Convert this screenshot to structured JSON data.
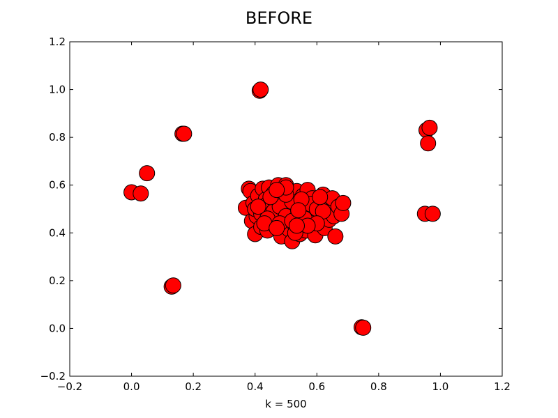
{
  "chart_data": {
    "type": "scatter",
    "title": "BEFORE",
    "xlabel": "k = 500",
    "ylabel": "",
    "xlim": [
      -0.2,
      1.2
    ],
    "ylim": [
      -0.2,
      1.2
    ],
    "xticks": [
      "−0.2",
      "0.0",
      "0.2",
      "0.4",
      "0.6",
      "0.8",
      "1.0",
      "1.2"
    ],
    "yticks": [
      "−0.2",
      "0.0",
      "0.2",
      "0.4",
      "0.6",
      "0.8",
      "1.0",
      "1.2"
    ],
    "grid": false,
    "marker_color": "#ff0000",
    "marker_edge_color": "#000000",
    "series": [
      {
        "points": [
          [
            0.0,
            0.57
          ],
          [
            0.03,
            0.565
          ],
          [
            0.05,
            0.65
          ],
          [
            0.13,
            0.175
          ],
          [
            0.135,
            0.18
          ],
          [
            0.165,
            0.815
          ],
          [
            0.17,
            0.815
          ],
          [
            0.415,
            0.995
          ],
          [
            0.418,
            1.0
          ],
          [
            0.745,
            0.005
          ],
          [
            0.75,
            0.003
          ],
          [
            0.955,
            0.83
          ],
          [
            0.965,
            0.84
          ],
          [
            0.96,
            0.775
          ],
          [
            0.95,
            0.48
          ],
          [
            0.975,
            0.48
          ],
          [
            0.37,
            0.505
          ],
          [
            0.38,
            0.585
          ],
          [
            0.385,
            0.575
          ],
          [
            0.39,
            0.45
          ],
          [
            0.395,
            0.525
          ],
          [
            0.4,
            0.395
          ],
          [
            0.405,
            0.47
          ],
          [
            0.41,
            0.555
          ],
          [
            0.415,
            0.51
          ],
          [
            0.42,
            0.425
          ],
          [
            0.425,
            0.585
          ],
          [
            0.43,
            0.48
          ],
          [
            0.435,
            0.54
          ],
          [
            0.44,
            0.41
          ],
          [
            0.445,
            0.59
          ],
          [
            0.45,
            0.5
          ],
          [
            0.455,
            0.455
          ],
          [
            0.46,
            0.565
          ],
          [
            0.465,
            0.43
          ],
          [
            0.47,
            0.52
          ],
          [
            0.475,
            0.6
          ],
          [
            0.48,
            0.47
          ],
          [
            0.485,
            0.385
          ],
          [
            0.49,
            0.545
          ],
          [
            0.495,
            0.44
          ],
          [
            0.5,
            0.6
          ],
          [
            0.505,
            0.5
          ],
          [
            0.51,
            0.415
          ],
          [
            0.515,
            0.57
          ],
          [
            0.52,
            0.365
          ],
          [
            0.525,
            0.485
          ],
          [
            0.53,
            0.43
          ],
          [
            0.535,
            0.575
          ],
          [
            0.54,
            0.52
          ],
          [
            0.545,
            0.395
          ],
          [
            0.55,
            0.455
          ],
          [
            0.555,
            0.555
          ],
          [
            0.56,
            0.5
          ],
          [
            0.565,
            0.41
          ],
          [
            0.57,
            0.58
          ],
          [
            0.575,
            0.475
          ],
          [
            0.58,
            0.43
          ],
          [
            0.585,
            0.545
          ],
          [
            0.59,
            0.5
          ],
          [
            0.595,
            0.39
          ],
          [
            0.6,
            0.465
          ],
          [
            0.605,
            0.535
          ],
          [
            0.61,
            0.445
          ],
          [
            0.615,
            0.505
          ],
          [
            0.62,
            0.56
          ],
          [
            0.625,
            0.42
          ],
          [
            0.63,
            0.48
          ],
          [
            0.635,
            0.525
          ],
          [
            0.64,
            0.455
          ],
          [
            0.645,
            0.495
          ],
          [
            0.65,
            0.545
          ],
          [
            0.655,
            0.47
          ],
          [
            0.66,
            0.385
          ],
          [
            0.67,
            0.51
          ],
          [
            0.68,
            0.48
          ],
          [
            0.685,
            0.525
          ],
          [
            0.4,
            0.5
          ],
          [
            0.42,
            0.48
          ],
          [
            0.44,
            0.52
          ],
          [
            0.46,
            0.49
          ],
          [
            0.48,
            0.51
          ],
          [
            0.5,
            0.47
          ],
          [
            0.52,
            0.53
          ],
          [
            0.54,
            0.49
          ],
          [
            0.56,
            0.48
          ],
          [
            0.58,
            0.52
          ],
          [
            0.6,
            0.5
          ],
          [
            0.62,
            0.49
          ],
          [
            0.44,
            0.46
          ],
          [
            0.48,
            0.44
          ],
          [
            0.52,
            0.45
          ],
          [
            0.56,
            0.46
          ],
          [
            0.6,
            0.44
          ],
          [
            0.45,
            0.55
          ],
          [
            0.5,
            0.56
          ],
          [
            0.55,
            0.54
          ],
          [
            0.61,
            0.55
          ],
          [
            0.43,
            0.44
          ],
          [
            0.53,
            0.4
          ],
          [
            0.57,
            0.43
          ],
          [
            0.47,
            0.42
          ],
          [
            0.41,
            0.51
          ],
          [
            0.535,
            0.43
          ],
          [
            0.54,
            0.495
          ],
          [
            0.5,
            0.59
          ],
          [
            0.47,
            0.58
          ]
        ]
      }
    ]
  }
}
